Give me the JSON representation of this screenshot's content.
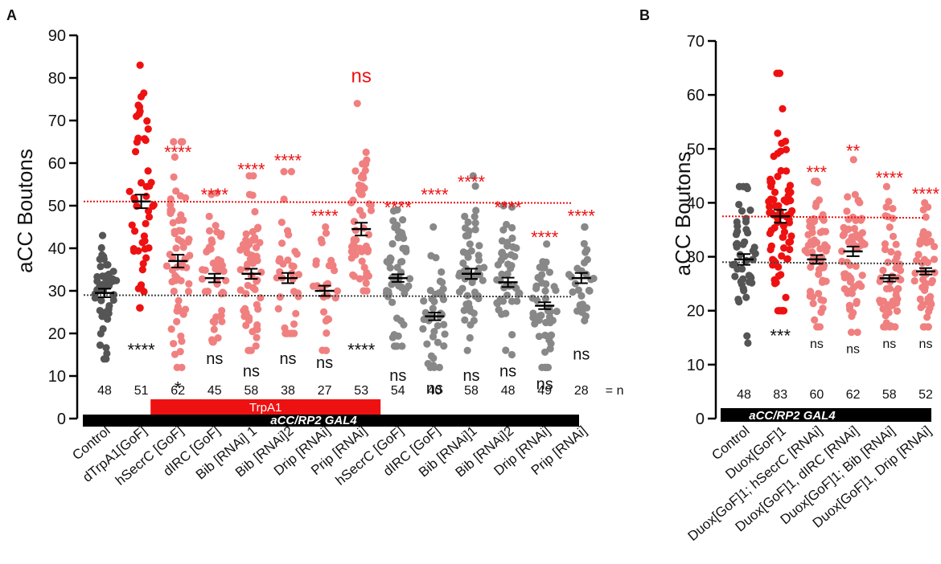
{
  "colors": {
    "control": "#555555",
    "gray": "#888888",
    "red": "#ee1111",
    "pink": "#f08080",
    "star_red": "#ee1111",
    "text": "#111111",
    "black": "#000000"
  },
  "chart_data": [
    {
      "type": "scatter",
      "panel_label": "A",
      "ylabel": "aCC Boutons",
      "ylim": [
        0,
        90
      ],
      "yticks": [
        0,
        10,
        20,
        30,
        40,
        50,
        60,
        70,
        80,
        90
      ],
      "categories": [
        "Control",
        "dTrpA1[GoF]",
        "hSecrC [GoF]",
        "dIRC [GoF]",
        "Bib [RNAi] 1",
        "Bib [RNAi]2",
        "Drip [RNAi]",
        "Prip [RNAi]",
        "hSecrC [GoF]",
        "dIRC [GoF]",
        "Bib [RNAi]1",
        "Bib [RNAi]2",
        "Drip [RNAi]",
        "Prip [RNAi]"
      ],
      "group_color": [
        "control",
        "red",
        "pink",
        "pink",
        "pink",
        "pink",
        "pink",
        "pink",
        "gray",
        "gray",
        "gray",
        "gray",
        "gray",
        "gray"
      ],
      "means": [
        29.5,
        51,
        37,
        33,
        34,
        33,
        30,
        44.5,
        33,
        24,
        34,
        32,
        26.5,
        33
      ],
      "sem": [
        1.0,
        1.6,
        1.5,
        1.0,
        1.2,
        1.2,
        1.2,
        1.5,
        0.9,
        0.9,
        1.2,
        1.1,
        0.8,
        1.2
      ],
      "spread": [
        [
          14,
          43
        ],
        [
          26,
          83
        ],
        [
          12,
          65
        ],
        [
          18,
          53
        ],
        [
          16,
          57
        ],
        [
          20,
          58
        ],
        [
          16,
          45
        ],
        [
          30,
          74
        ],
        [
          17,
          49
        ],
        [
          12,
          45
        ],
        [
          16,
          57
        ],
        [
          15,
          50
        ],
        [
          12,
          41
        ],
        [
          23,
          45
        ]
      ],
      "n_values": [
        "48",
        "51",
        "62",
        "45",
        "58",
        "38",
        "27",
        "53",
        "54",
        "40",
        "58",
        "48",
        "49",
        "28"
      ],
      "n_suffix": "= n",
      "top_sig": [
        "",
        "",
        "****",
        "****",
        "****",
        "****",
        "****",
        "ns",
        "****",
        "****",
        "****",
        "****",
        "****",
        "****"
      ],
      "top_sig_y": [
        0,
        0,
        63,
        53,
        59,
        61,
        48,
        79,
        50,
        53,
        56,
        50,
        43,
        48
      ],
      "bottom_sig": [
        "",
        "****",
        "*",
        "ns",
        "ns",
        "ns",
        "ns",
        "****",
        "ns",
        "ns",
        "ns",
        "ns",
        "ns",
        "ns"
      ],
      "bottom_sig_y": [
        0,
        17,
        8,
        14,
        11,
        14,
        13,
        17,
        10,
        7,
        10,
        11,
        8,
        15
      ],
      "control_line_y": 29,
      "gof_line_y": 51,
      "trpa1_label": "TrpA1",
      "trpa1_span": [
        2,
        7
      ],
      "driver_label": "aCC/RP2 GAL4"
    },
    {
      "type": "scatter",
      "panel_label": "B",
      "ylabel": "aCC Boutons",
      "ylim": [
        0,
        70
      ],
      "yticks": [
        0,
        10,
        20,
        30,
        40,
        50,
        60,
        70
      ],
      "categories": [
        "Control",
        "Duox[GoF]1",
        "Duox[GoF]1; hSecrC [RNAi]",
        "Duox[GoF]1, dIRC [RNAi]",
        "Duox[GoF]1; Bib [RNAi]",
        "Duox[GoF]1, Drip [RNAi]"
      ],
      "group_color": [
        "control",
        "red",
        "pink",
        "pink",
        "pink",
        "pink"
      ],
      "means": [
        29.5,
        37.5,
        29.5,
        31,
        26,
        27.3
      ],
      "sem": [
        1.0,
        1.2,
        0.8,
        0.9,
        0.6,
        0.6
      ],
      "spread": [
        [
          14,
          43
        ],
        [
          20,
          64
        ],
        [
          17,
          44
        ],
        [
          16,
          48
        ],
        [
          17,
          43
        ],
        [
          17,
          40
        ]
      ],
      "n_values": [
        "48",
        "83",
        "60",
        "62",
        "58",
        "52"
      ],
      "n_suffix": "= n",
      "top_sig": [
        "",
        "",
        "***",
        "**",
        "****",
        "****"
      ],
      "top_sig_y": [
        0,
        0,
        46,
        50,
        45,
        42
      ],
      "bottom_sig": [
        "",
        "***",
        "ns",
        "ns",
        "ns",
        "ns"
      ],
      "bottom_sig_y": [
        0,
        16,
        14,
        13,
        14,
        14
      ],
      "control_line_y": 29,
      "gof_line_y": 37.5,
      "driver_label": "aCC/RP2 GAL4"
    }
  ]
}
